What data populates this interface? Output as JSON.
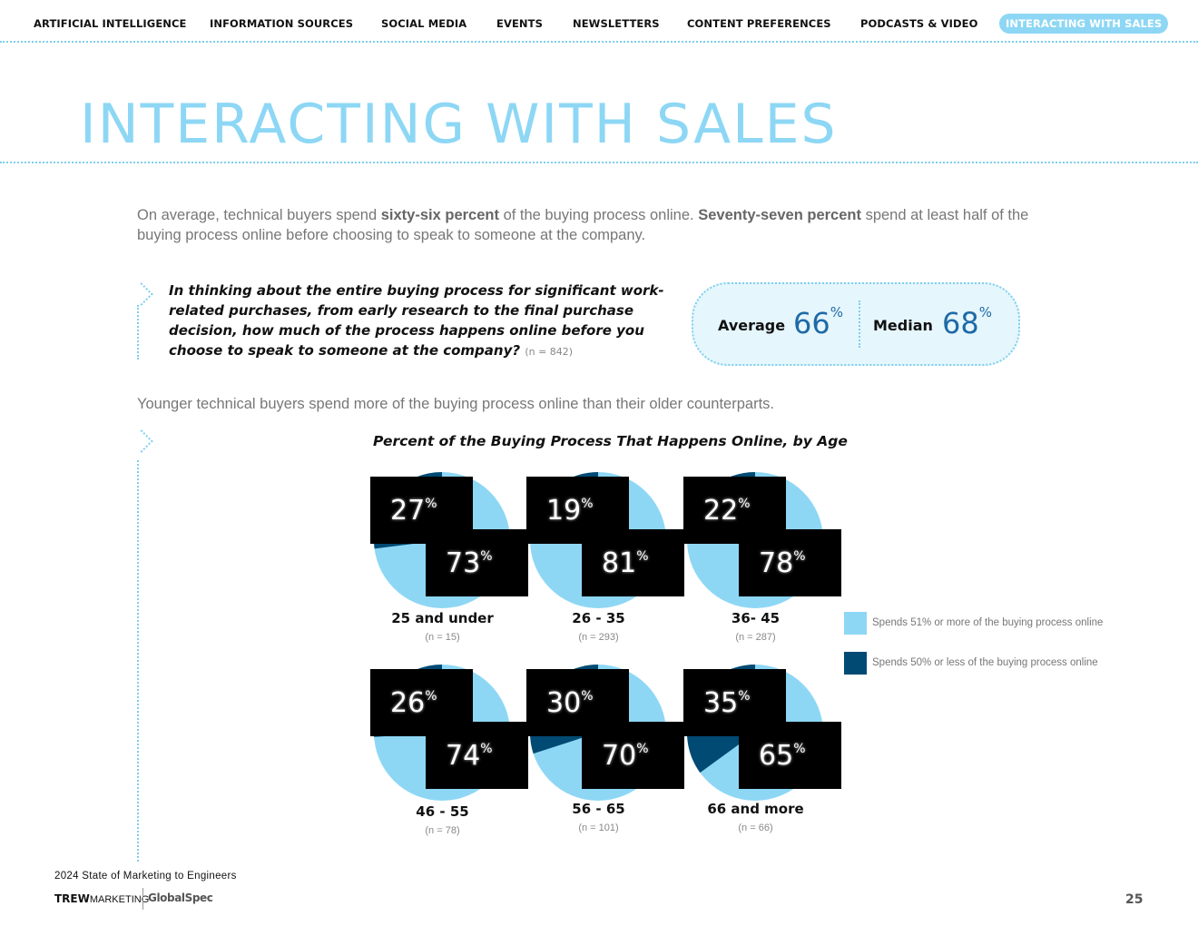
{
  "nav": {
    "items": [
      "ARTIFICIAL INTELLIGENCE",
      "INFORMATION SOURCES",
      "SOCIAL MEDIA",
      "EVENTS",
      "NEWSLETTERS",
      "CONTENT PREFERENCES",
      "PODCASTS & VIDEO",
      "INTERACTING WITH SALES"
    ],
    "active": "INTERACTING WITH SALES"
  },
  "page_title": "INTERACTING WITH SALES",
  "intro": {
    "p1": "On average, technical buyers spend ",
    "b1": "sixty-six percent",
    "p2": " of the buying process online. ",
    "b2": "Seventy-seven percent",
    "p3": " spend at least half of the buying process online before choosing to speak to someone at the company."
  },
  "question": {
    "text": "In thinking about the entire buying process for significant work-related purchases, from early research to the final purchase decision, how much of the process happens online before you choose to speak to someone at the company?",
    "n": "(n = 842)"
  },
  "stats": {
    "average_label": "Average",
    "average_value": "66",
    "median_label": "Median",
    "median_value": "68",
    "unit": "%"
  },
  "sub_intro": "Younger technical buyers spend more of the buying process online than their older counterparts.",
  "colors": {
    "light": "#8dd7f5",
    "dark": "#004a73",
    "accent": "#7dcfee"
  },
  "chart_data": {
    "type": "pie",
    "title": "Percent of the Buying Process That Happens Online, by Age",
    "series_labels": [
      "Spends 51% or more of the buying process online",
      "Spends 50% or less of the buying process online"
    ],
    "groups": [
      {
        "label": "25 and under",
        "n": "(n = 15)",
        "values": [
          73,
          27
        ]
      },
      {
        "label": "26 - 35",
        "n": "(n = 293)",
        "values": [
          81,
          19
        ]
      },
      {
        "label": "36- 45",
        "n": "(n = 287)",
        "values": [
          78,
          22
        ]
      },
      {
        "label": "46 - 55",
        "n": "(n = 78)",
        "values": [
          74,
          26
        ]
      },
      {
        "label": "56 - 65",
        "n": "(n = 101)",
        "values": [
          70,
          30
        ]
      },
      {
        "label": "66 and more",
        "n": "(n = 66)",
        "values": [
          65,
          35
        ]
      }
    ]
  },
  "footer": {
    "report": "2024 State of Marketing to Engineers",
    "logo1_bold": "TREW",
    "logo1_rest": "MARKETING",
    "logo2": "GlobalSpec",
    "page_number": "25"
  }
}
